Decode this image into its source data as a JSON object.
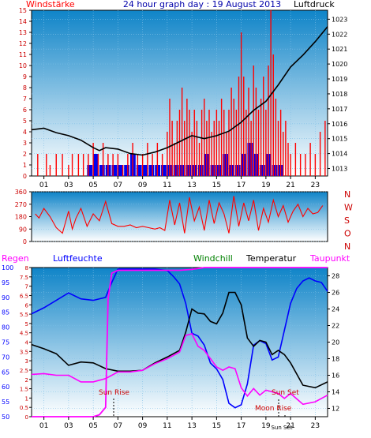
{
  "top": {
    "left_title": "Windstärke",
    "title": "24 hour graph day : 19 August 2013",
    "right_title": "Luftdruck"
  },
  "middle": {
    "compass": [
      "N",
      "W",
      "S",
      "O",
      "N"
    ]
  },
  "bottom": {
    "labels": {
      "regen": "Regen",
      "luftfeuchte": "Luftfeuchte",
      "windchill": "Windchill",
      "temperatur": "Temperatur",
      "taupunkt": "Taupunkt"
    },
    "annotations": {
      "sun_rise": "Sun Rise",
      "sun_set": "Sun Set",
      "moon_rise": "Moon Rise",
      "sun_set_axis": "Sun Set"
    }
  },
  "colors": {
    "wind": "#ff0000",
    "pressure": "#000000",
    "windchill": "#008000",
    "humidity": "#0000ff",
    "temperature": "#000000",
    "dewpoint": "#ff00ff",
    "rain_axis": "#ff00ff",
    "humidity_axis": "#0000ff",
    "panel_gradient_top": "#0f84c8",
    "panel_gradient_bottom": "#ffffff"
  },
  "chart_data": [
    {
      "type": "bar",
      "name": "wind-pressure",
      "x_ticks": [
        "01",
        "03",
        "05",
        "07",
        "09",
        "11",
        "13",
        "15",
        "17",
        "19",
        "21",
        "23"
      ],
      "left_axis": {
        "ticks": [
          "0",
          "1",
          "2",
          "3",
          "4",
          "5",
          "6",
          "7",
          "8",
          "9",
          "10",
          "11",
          "12",
          "13",
          "14",
          "15"
        ],
        "ylim": [
          0,
          15
        ]
      },
      "right_axis": {
        "ticks": [
          "1013",
          "1014",
          "1015",
          "1016",
          "1017",
          "1018",
          "1019",
          "1020",
          "1021",
          "1022",
          "1023"
        ],
        "ylim": [
          1012.5,
          1023.6
        ]
      },
      "pressure": {
        "x": [
          0,
          1,
          2,
          3,
          4,
          5,
          5.5,
          6,
          7,
          8,
          9,
          10,
          11,
          12,
          13,
          14,
          15,
          16,
          17,
          18,
          19,
          20,
          21,
          22,
          23,
          24
        ],
        "y": [
          1015.6,
          1015.7,
          1015.4,
          1015.2,
          1014.9,
          1014.4,
          1014.2,
          1014.4,
          1014.3,
          1014.0,
          1013.9,
          1014.1,
          1014.4,
          1014.8,
          1015.2,
          1015.0,
          1015.2,
          1015.5,
          1016.1,
          1016.9,
          1017.5,
          1018.6,
          1019.8,
          1020.6,
          1021.5,
          1022.5
        ]
      },
      "wind": {
        "x": [
          0.5,
          1.2,
          1.5,
          2.0,
          2.5,
          3.0,
          3.3,
          3.8,
          4.2,
          4.6,
          5.0,
          5.4,
          5.8,
          6.2,
          6.6,
          7.0,
          7.4,
          7.8,
          8.2,
          8.6,
          9.0,
          9.4,
          9.8,
          10.2,
          10.6,
          11.0,
          11.2,
          11.4,
          11.6,
          11.8,
          12.0,
          12.2,
          12.4,
          12.6,
          12.8,
          13.0,
          13.2,
          13.4,
          13.6,
          13.8,
          14.0,
          14.2,
          14.4,
          14.6,
          14.8,
          15.0,
          15.2,
          15.4,
          15.6,
          15.8,
          16.0,
          16.2,
          16.4,
          16.6,
          16.8,
          17.0,
          17.2,
          17.4,
          17.6,
          17.8,
          18.0,
          18.2,
          18.4,
          18.6,
          18.8,
          19.0,
          19.2,
          19.4,
          19.6,
          19.8,
          20.0,
          20.2,
          20.4,
          20.6,
          20.8,
          21.0,
          21.4,
          21.8,
          22.2,
          22.6,
          23.0,
          23.4,
          23.8
        ],
        "y": [
          2,
          2,
          1,
          2,
          2,
          1,
          2,
          2,
          2,
          2,
          3,
          2,
          3,
          2,
          2,
          2,
          1,
          2,
          3,
          2,
          2,
          3,
          2,
          3,
          2,
          4,
          7,
          5,
          3,
          5,
          6,
          8,
          5,
          7,
          6,
          4,
          6,
          5,
          3,
          6,
          7,
          5,
          6,
          4,
          5,
          6,
          5,
          7,
          6,
          4,
          6,
          8,
          7,
          6,
          9,
          13,
          9,
          6,
          8,
          5,
          10,
          8,
          6,
          7,
          9,
          6,
          10,
          15,
          11,
          7,
          5,
          6,
          4,
          5,
          3,
          2,
          3,
          2,
          2,
          3,
          2,
          4,
          5
        ]
      },
      "wind_gust_blue": {
        "x": [
          4.5,
          5.0,
          5.5,
          6.0,
          6.5,
          7.0,
          7.5,
          8.0,
          8.5,
          9.0,
          9.5,
          10.0,
          10.5,
          11.0,
          11.5,
          12.0,
          12.5,
          13.0,
          13.5,
          14.0,
          14.5,
          15.0,
          15.5,
          16.0,
          16.5,
          17.0,
          17.5,
          18.0,
          18.5,
          19.0,
          19.5,
          20.0
        ],
        "y": [
          1,
          2,
          1,
          1,
          1,
          1,
          1,
          2,
          1,
          1,
          1,
          1,
          1,
          1,
          1,
          1,
          1,
          1,
          1,
          2,
          1,
          1,
          2,
          1,
          1,
          2,
          3,
          2,
          1,
          2,
          1,
          1
        ]
      }
    },
    {
      "type": "scatter",
      "name": "wind-direction",
      "left_axis": {
        "ticks": [
          "0",
          "90",
          "180",
          "270",
          "360"
        ],
        "ylim": [
          0,
          360
        ]
      },
      "x": [
        0.3,
        0.6,
        1.0,
        1.5,
        2.0,
        2.5,
        3.0,
        3.3,
        3.6,
        4.0,
        4.5,
        5.0,
        5.5,
        6.0,
        6.5,
        7.0,
        7.5,
        8.0,
        8.5,
        9.0,
        9.5,
        10.0,
        10.4,
        10.8,
        11.2,
        11.6,
        12.0,
        12.4,
        12.8,
        13.2,
        13.6,
        14.0,
        14.4,
        14.8,
        15.2,
        15.6,
        16.0,
        16.4,
        16.8,
        17.2,
        17.6,
        18.0,
        18.4,
        18.8,
        19.2,
        19.6,
        20.0,
        20.4,
        20.8,
        21.2,
        21.6,
        22.0,
        22.4,
        22.8,
        23.2,
        23.6
      ],
      "y": [
        200,
        170,
        240,
        180,
        100,
        60,
        220,
        90,
        170,
        240,
        110,
        200,
        150,
        290,
        130,
        110,
        110,
        120,
        100,
        110,
        100,
        90,
        100,
        80,
        300,
        120,
        280,
        60,
        320,
        150,
        250,
        80,
        300,
        130,
        280,
        200,
        60,
        330,
        110,
        280,
        150,
        300,
        80,
        240,
        140,
        300,
        180,
        260,
        140,
        220,
        270,
        180,
        240,
        200,
        210,
        260
      ]
    },
    {
      "type": "line",
      "name": "temperature-humidity",
      "x_ticks": [
        "01",
        "03",
        "05",
        "07",
        "09",
        "11",
        "13",
        "15",
        "17",
        "19",
        "21",
        "23"
      ],
      "rain_axis": {
        "ticks": [
          "0",
          "0.5",
          "1",
          "1.5",
          "2",
          "2.5",
          "3",
          "3.5",
          "4",
          "4.5",
          "5",
          "5.5",
          "6",
          "6.5",
          "7",
          "7.5",
          "8"
        ],
        "ylim": [
          0,
          8
        ]
      },
      "humidity_axis": {
        "ticks": [
          "50",
          "55",
          "60",
          "65",
          "70",
          "75",
          "80",
          "85",
          "90",
          "95",
          "100"
        ],
        "ylim": [
          50,
          100
        ]
      },
      "temperature_axis": {
        "ticks": [
          "12",
          "14",
          "16",
          "18",
          "20",
          "22",
          "24",
          "26",
          "28"
        ],
        "ylim": [
          11,
          29
        ]
      },
      "series": [
        {
          "name": "Luftfeuchte",
          "x": [
            0,
            1,
            2,
            3,
            4,
            5,
            6,
            6.5,
            7,
            8,
            9,
            10,
            11,
            11.5,
            12,
            12.5,
            13,
            13.5,
            14,
            14.5,
            15,
            15.5,
            16,
            16.5,
            17,
            17.5,
            18,
            18.5,
            19,
            19.5,
            20,
            20.5,
            21,
            21.5,
            22,
            22.5,
            23,
            23.5,
            24
          ],
          "y": [
            84.5,
            86.5,
            89,
            91.5,
            89.5,
            89,
            90,
            95,
            99.5,
            99.5,
            99.5,
            99.5,
            99,
            97,
            94.5,
            88,
            78,
            77,
            74,
            68,
            66,
            62.5,
            54.5,
            53,
            54,
            61,
            74,
            75.5,
            74.5,
            69,
            70,
            79,
            88,
            93,
            95.5,
            96.5,
            95.5,
            95,
            92
          ]
        },
        {
          "name": "Temperatur",
          "x": [
            0,
            1,
            2,
            3,
            4,
            5,
            6,
            7,
            8,
            9,
            10,
            11,
            12,
            12.5,
            13,
            13.5,
            14,
            14.5,
            15,
            15.5,
            16,
            16.5,
            17,
            17.5,
            18,
            18.5,
            19,
            19.5,
            20,
            20.5,
            21,
            22,
            23,
            24
          ],
          "y": [
            19.7,
            19.2,
            18.6,
            17.2,
            17.6,
            17.5,
            16.8,
            16.5,
            16.5,
            16.6,
            17.5,
            18.2,
            19,
            21.2,
            24,
            23.5,
            23.4,
            22.5,
            22.2,
            23.5,
            26,
            26,
            24.5,
            20.5,
            19.5,
            20.2,
            20,
            18.5,
            19,
            18.5,
            17.5,
            14.8,
            14.5,
            15.2
          ]
        },
        {
          "name": "Taupunkt",
          "x": [
            0,
            1,
            2,
            3,
            4,
            5,
            6,
            7,
            8,
            9,
            10,
            11,
            12,
            12.5,
            13,
            13.5,
            14,
            14.5,
            15,
            15.5,
            16,
            16.5,
            17,
            17.5,
            18,
            18.5,
            19,
            19.5,
            20,
            20.5,
            21,
            22,
            23,
            24
          ],
          "y": [
            16.1,
            16.2,
            16,
            16,
            15.2,
            15.2,
            15.6,
            16.4,
            16.4,
            16.6,
            17.4,
            18,
            18.8,
            20.8,
            21,
            19.5,
            19,
            18,
            17,
            16.6,
            17,
            16.8,
            14.5,
            13.5,
            14.4,
            13.6,
            14.2,
            14,
            13.8,
            13.2,
            13.8,
            12.5,
            12.8,
            13.6
          ]
        },
        {
          "name": "Regen",
          "x": [
            0,
            5,
            5.5,
            6,
            6.2,
            6.5,
            7,
            8,
            9,
            10,
            11,
            12,
            13,
            14,
            15,
            16,
            17,
            18,
            19,
            20,
            21,
            22,
            23,
            24
          ],
          "y": [
            0,
            0,
            0.1,
            0.5,
            6.3,
            7.7,
            7.85,
            7.85,
            7.85,
            7.85,
            7.85,
            7.85,
            7.9,
            8,
            8,
            8,
            8,
            8,
            8,
            8,
            8,
            8,
            8,
            8
          ]
        }
      ]
    }
  ]
}
